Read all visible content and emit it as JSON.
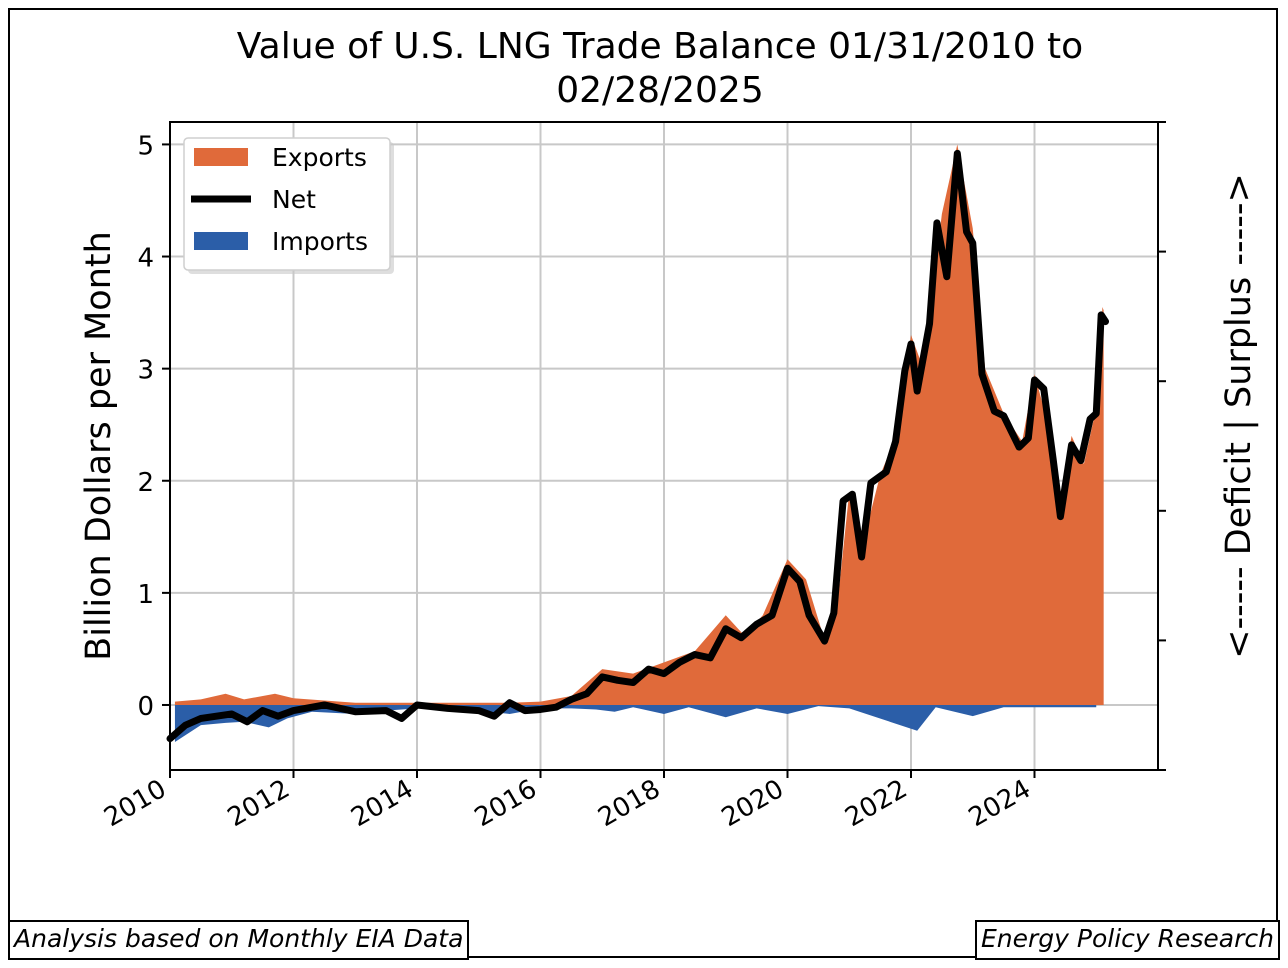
{
  "chart_data": {
    "type": "area",
    "title": "Value of U.S. LNG Trade Balance 01/31/2010 to 02/28/2025",
    "title_lines": [
      "Value of U.S. LNG Trade Balance 01/31/2010 to",
      "02/28/2025"
    ],
    "ylabel": "Billion Dollars per Month",
    "right_label": "<----- Deficit | Surplus ----->",
    "xlim": [
      2010.0,
      2026.0
    ],
    "ylim": [
      -0.58,
      5.2
    ],
    "x_ticks": [
      "2010",
      "2012",
      "2014",
      "2016",
      "2018",
      "2020",
      "2022",
      "2024"
    ],
    "y_ticks": [
      "0",
      "1",
      "2",
      "3",
      "4",
      "5"
    ],
    "grid": true,
    "legend_position": "upper-left",
    "series": [
      {
        "name": "Exports",
        "color": "#e06a3a",
        "points": [
          [
            2010.08,
            0.03
          ],
          [
            2010.5,
            0.05
          ],
          [
            2010.9,
            0.1
          ],
          [
            2011.2,
            0.05
          ],
          [
            2011.7,
            0.1
          ],
          [
            2012.0,
            0.06
          ],
          [
            2012.5,
            0.04
          ],
          [
            2013.0,
            0.02
          ],
          [
            2013.5,
            0.02
          ],
          [
            2014.0,
            0.02
          ],
          [
            2014.5,
            0.02
          ],
          [
            2015.0,
            0.02
          ],
          [
            2015.5,
            0.02
          ],
          [
            2016.0,
            0.03
          ],
          [
            2016.5,
            0.08
          ],
          [
            2017.0,
            0.32
          ],
          [
            2017.5,
            0.28
          ],
          [
            2018.0,
            0.38
          ],
          [
            2018.5,
            0.48
          ],
          [
            2019.0,
            0.8
          ],
          [
            2019.3,
            0.62
          ],
          [
            2019.6,
            0.8
          ],
          [
            2020.0,
            1.3
          ],
          [
            2020.3,
            1.12
          ],
          [
            2020.6,
            0.58
          ],
          [
            2020.8,
            0.85
          ],
          [
            2021.0,
            1.9
          ],
          [
            2021.2,
            1.4
          ],
          [
            2021.5,
            2.05
          ],
          [
            2021.8,
            2.45
          ],
          [
            2022.0,
            3.3
          ],
          [
            2022.2,
            3.0
          ],
          [
            2022.5,
            4.38
          ],
          [
            2022.75,
            5.0
          ],
          [
            2023.0,
            4.25
          ],
          [
            2023.2,
            3.0
          ],
          [
            2023.5,
            2.6
          ],
          [
            2023.8,
            2.35
          ],
          [
            2024.0,
            2.95
          ],
          [
            2024.2,
            2.55
          ],
          [
            2024.4,
            1.72
          ],
          [
            2024.6,
            2.4
          ],
          [
            2024.8,
            2.15
          ],
          [
            2025.0,
            2.65
          ],
          [
            2025.1,
            3.55
          ],
          [
            2025.12,
            3.52
          ]
        ]
      },
      {
        "name": "Net",
        "color": "#000000",
        "points": [
          [
            2010.0,
            -0.3
          ],
          [
            2010.25,
            -0.18
          ],
          [
            2010.5,
            -0.12
          ],
          [
            2010.75,
            -0.1
          ],
          [
            2011.0,
            -0.08
          ],
          [
            2011.25,
            -0.15
          ],
          [
            2011.5,
            -0.05
          ],
          [
            2011.75,
            -0.1
          ],
          [
            2012.0,
            -0.05
          ],
          [
            2012.5,
            0.0
          ],
          [
            2013.0,
            -0.06
          ],
          [
            2013.5,
            -0.05
          ],
          [
            2013.75,
            -0.12
          ],
          [
            2014.0,
            0.0
          ],
          [
            2014.5,
            -0.03
          ],
          [
            2015.0,
            -0.05
          ],
          [
            2015.25,
            -0.1
          ],
          [
            2015.5,
            0.02
          ],
          [
            2015.75,
            -0.05
          ],
          [
            2016.0,
            -0.04
          ],
          [
            2016.25,
            -0.02
          ],
          [
            2016.5,
            0.05
          ],
          [
            2016.75,
            0.1
          ],
          [
            2017.0,
            0.25
          ],
          [
            2017.25,
            0.22
          ],
          [
            2017.5,
            0.2
          ],
          [
            2017.75,
            0.32
          ],
          [
            2018.0,
            0.28
          ],
          [
            2018.25,
            0.38
          ],
          [
            2018.5,
            0.45
          ],
          [
            2018.75,
            0.42
          ],
          [
            2019.0,
            0.68
          ],
          [
            2019.25,
            0.6
          ],
          [
            2019.5,
            0.72
          ],
          [
            2019.75,
            0.8
          ],
          [
            2020.0,
            1.22
          ],
          [
            2020.2,
            1.1
          ],
          [
            2020.35,
            0.8
          ],
          [
            2020.6,
            0.57
          ],
          [
            2020.75,
            0.82
          ],
          [
            2020.9,
            1.82
          ],
          [
            2021.05,
            1.88
          ],
          [
            2021.2,
            1.32
          ],
          [
            2021.35,
            1.98
          ],
          [
            2021.6,
            2.08
          ],
          [
            2021.75,
            2.35
          ],
          [
            2021.9,
            2.98
          ],
          [
            2022.0,
            3.22
          ],
          [
            2022.1,
            2.8
          ],
          [
            2022.3,
            3.4
          ],
          [
            2022.42,
            4.3
          ],
          [
            2022.58,
            3.82
          ],
          [
            2022.75,
            4.92
          ],
          [
            2022.9,
            4.22
          ],
          [
            2023.0,
            4.12
          ],
          [
            2023.15,
            2.95
          ],
          [
            2023.35,
            2.62
          ],
          [
            2023.5,
            2.58
          ],
          [
            2023.75,
            2.3
          ],
          [
            2023.9,
            2.38
          ],
          [
            2024.0,
            2.9
          ],
          [
            2024.15,
            2.82
          ],
          [
            2024.3,
            2.2
          ],
          [
            2024.42,
            1.68
          ],
          [
            2024.6,
            2.32
          ],
          [
            2024.75,
            2.18
          ],
          [
            2024.9,
            2.55
          ],
          [
            2025.0,
            2.6
          ],
          [
            2025.08,
            3.48
          ],
          [
            2025.15,
            3.42
          ]
        ]
      },
      {
        "name": "Imports",
        "color": "#2b5ea8",
        "points": [
          [
            2010.08,
            -0.33
          ],
          [
            2010.5,
            -0.18
          ],
          [
            2010.9,
            -0.16
          ],
          [
            2011.2,
            -0.15
          ],
          [
            2011.6,
            -0.2
          ],
          [
            2011.9,
            -0.12
          ],
          [
            2012.3,
            -0.06
          ],
          [
            2013.0,
            -0.08
          ],
          [
            2013.5,
            -0.05
          ],
          [
            2014.0,
            -0.03
          ],
          [
            2015.0,
            -0.05
          ],
          [
            2015.5,
            -0.08
          ],
          [
            2016.0,
            -0.03
          ],
          [
            2016.5,
            -0.03
          ],
          [
            2016.9,
            -0.04
          ],
          [
            2017.2,
            -0.06
          ],
          [
            2017.5,
            -0.02
          ],
          [
            2018.0,
            -0.08
          ],
          [
            2018.4,
            -0.02
          ],
          [
            2019.0,
            -0.11
          ],
          [
            2019.5,
            -0.03
          ],
          [
            2020.0,
            -0.08
          ],
          [
            2020.5,
            -0.01
          ],
          [
            2021.0,
            -0.03
          ],
          [
            2022.1,
            -0.23
          ],
          [
            2022.4,
            -0.02
          ],
          [
            2023.0,
            -0.1
          ],
          [
            2023.5,
            -0.02
          ],
          [
            2024.0,
            -0.02
          ],
          [
            2025.0,
            -0.02
          ]
        ]
      }
    ]
  },
  "footer": {
    "left": "Analysis based on Monthly EIA Data",
    "right": "Energy Policy Research"
  }
}
